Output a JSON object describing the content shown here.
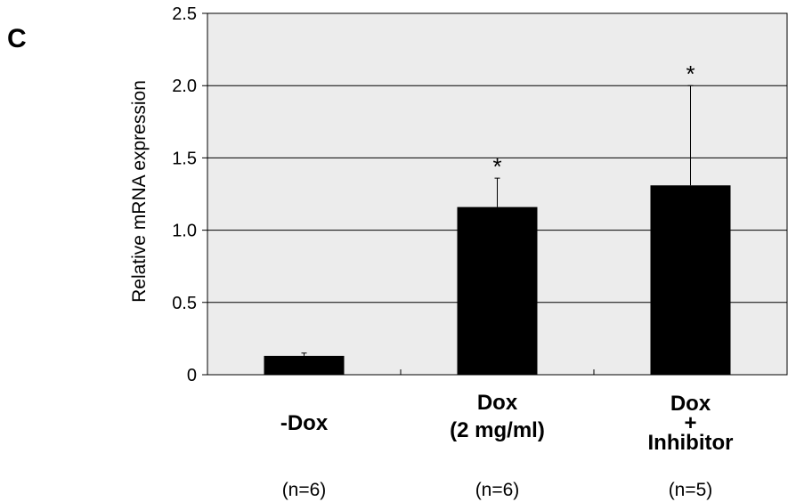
{
  "panel_label": "C",
  "chart_data": {
    "type": "bar",
    "ylabel": "Relative mRNA expression",
    "ylim": [
      0,
      2.5
    ],
    "yticks": [
      "0",
      "0.5",
      "1.0",
      "1.5",
      "2.0",
      "2.5"
    ],
    "grid": "horizontal",
    "background_color": "#ececec",
    "bar_color": "#000000",
    "categories": [
      {
        "lines": [
          "-Dox"
        ],
        "n_label": "(n=6)"
      },
      {
        "lines": [
          "Dox",
          "(2 mg/ml)"
        ],
        "n_label": "(n=6)"
      },
      {
        "lines": [
          "Dox",
          "+",
          "Inhibitor"
        ],
        "n_label": "(n=5)"
      }
    ],
    "values": [
      0.13,
      1.16,
      1.31
    ],
    "error_upper": [
      0.02,
      0.2,
      0.69
    ],
    "significance": [
      "",
      "*",
      "*"
    ]
  }
}
